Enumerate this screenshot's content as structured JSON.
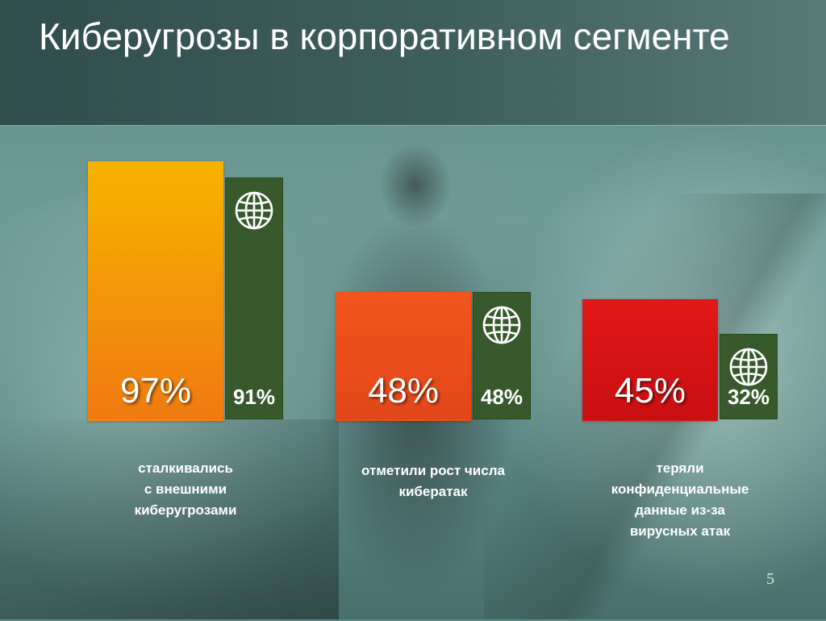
{
  "slide": {
    "title": "Киберугрозы в корпоративном сегменте",
    "page_number": "5"
  },
  "icons": {
    "small_bar_icon": "globe-icon"
  },
  "colors": {
    "bar1": "#f08a10",
    "bar2": "#e8531a",
    "bar3": "#d21414",
    "small_bar": "#37592c"
  },
  "chart_data": {
    "type": "bar",
    "title": "Киберугрозы в корпоративном сегменте",
    "categories": [
      "сталкивались с внешними киберугрозами",
      "отметили рост числа кибератак",
      "теряли конфиденциальные данные из-за вирусных атак"
    ],
    "category_lines": [
      [
        "сталкивались",
        "с внешними",
        "киберугрозами"
      ],
      [
        "отметили рост числа",
        "кибератак"
      ],
      [
        "теряли",
        "конфиденциальные",
        "данные из-за",
        "вирусных атак"
      ]
    ],
    "series": [
      {
        "values": [
          97,
          48,
          45
        ],
        "labels": [
          "97%",
          "48%",
          "45%"
        ]
      },
      {
        "values": [
          91,
          48,
          32
        ],
        "labels": [
          "91%",
          "48%",
          "32%"
        ]
      }
    ],
    "ylim": [
      0,
      100
    ],
    "grid": false
  }
}
